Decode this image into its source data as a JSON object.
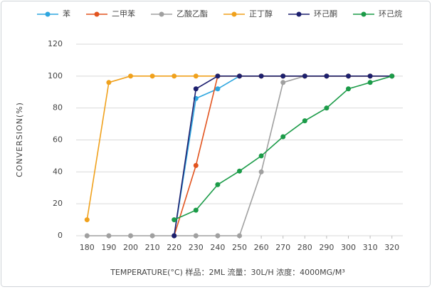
{
  "chart_data": {
    "type": "line",
    "x_label": "TEMPERATURE(°C)    样品：2ML 流量：30L/H 浓度：4000MG/M³",
    "y_label": "CONVERSION(%)",
    "x": [
      180,
      190,
      200,
      210,
      220,
      230,
      240,
      250,
      260,
      270,
      280,
      290,
      300,
      310,
      320
    ],
    "xlim": [
      175,
      325
    ],
    "xticks": [
      180,
      190,
      200,
      210,
      220,
      230,
      240,
      250,
      260,
      270,
      280,
      290,
      300,
      310,
      320
    ],
    "ylim": [
      0,
      120
    ],
    "yticks": [
      0,
      20,
      40,
      60,
      80,
      100,
      120
    ],
    "grid": true,
    "legend": "top",
    "series": [
      {
        "name": "苯",
        "color": "#2ea6df",
        "values": [
          null,
          null,
          null,
          null,
          0,
          86,
          92,
          100,
          100,
          100,
          100,
          100,
          100,
          100,
          100
        ]
      },
      {
        "name": "二甲苯",
        "color": "#e2541f",
        "values": [
          null,
          null,
          null,
          null,
          0,
          44,
          100,
          100,
          100,
          100,
          100,
          100,
          100,
          100,
          100
        ]
      },
      {
        "name": "乙酸乙酯",
        "color": "#a0a0a0",
        "values": [
          0,
          0,
          0,
          0,
          0,
          0,
          0,
          0,
          40,
          96,
          100,
          100,
          100,
          100,
          100
        ]
      },
      {
        "name": "正丁醇",
        "color": "#f0a11c",
        "values": [
          10,
          96,
          100,
          100,
          100,
          100,
          100,
          100,
          100,
          100,
          100,
          100,
          100,
          100,
          100
        ]
      },
      {
        "name": "环己酮",
        "color": "#1c1f6e",
        "values": [
          null,
          null,
          null,
          null,
          0,
          92,
          100,
          100,
          100,
          100,
          100,
          100,
          100,
          100,
          100
        ]
      },
      {
        "name": "环己烷",
        "color": "#1b9b48",
        "values": [
          null,
          null,
          null,
          null,
          10,
          16,
          32,
          40.5,
          50,
          62,
          72,
          80,
          92,
          96,
          100
        ]
      }
    ]
  }
}
